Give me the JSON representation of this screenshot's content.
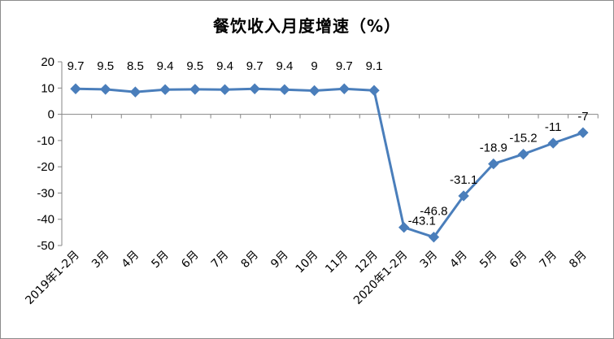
{
  "chart_data": {
    "type": "line",
    "title": "餐饮收入月度增速（%）",
    "xlabel": "",
    "ylabel": "",
    "categories": [
      "2019年1-2月",
      "3月",
      "4月",
      "5月",
      "6月",
      "7月",
      "8月",
      "9月",
      "10月",
      "11月",
      "12月",
      "2020年1-2月",
      "3月",
      "4月",
      "5月",
      "6月",
      "7月",
      "8月"
    ],
    "series": [
      {
        "values": [
          9.7,
          9.5,
          8.5,
          9.4,
          9.5,
          9.4,
          9.7,
          9.4,
          9,
          9.7,
          9.1,
          -43.1,
          -46.8,
          -31.1,
          -18.9,
          -15.2,
          -11,
          -7
        ],
        "labels": [
          "9.7",
          "9.5",
          "8.5",
          "9.4",
          "9.5",
          "9.4",
          "9.7",
          "9.4",
          "9",
          "9.7",
          "9.1",
          "-43.1",
          "-46.8",
          "-31.1",
          "-18.9",
          "-15.2",
          "-11",
          "-7"
        ]
      }
    ],
    "yticks": [
      "20",
      "10",
      "0",
      "-10",
      "-20",
      "-30",
      "-40",
      "-50"
    ],
    "ylim": [
      -50,
      20
    ],
    "grid": false,
    "legend": "none",
    "line_color": "#4a7ebb",
    "marker": "diamond"
  }
}
